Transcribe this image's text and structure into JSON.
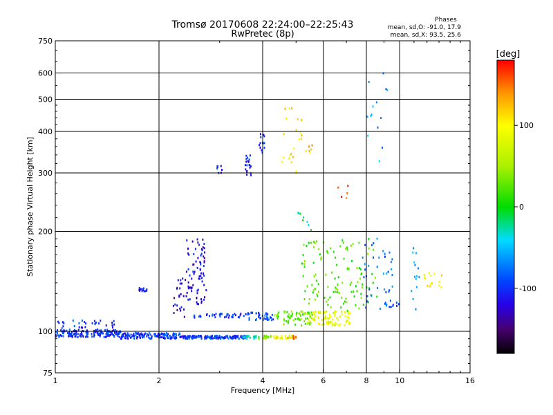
{
  "chart_data": {
    "type": "scatter",
    "title": "Tromsø 20170608 22:24:00–22:25:43",
    "subtitle": "RwPretec (8p)",
    "stats": {
      "heading": "Phases",
      "line_o": "mean, sd,O:  -91.0,  17.9",
      "line_x": "mean, sd,X:   93.5,  25.6"
    },
    "xlabel": "Frequency [MHz]",
    "ylabel": "Stationary phase Virtual Height [km]",
    "x_scale": "log2",
    "y_scale": "log",
    "xlim": [
      1,
      16
    ],
    "ylim": [
      75,
      750
    ],
    "grid": true,
    "x_ticks": [
      {
        "value": 1,
        "label": "1"
      },
      {
        "value": 2,
        "label": "2"
      },
      {
        "value": 4,
        "label": "4"
      },
      {
        "value": 6,
        "label": "6"
      },
      {
        "value": 8,
        "label": "8"
      },
      {
        "value": 10,
        "label": "10"
      },
      {
        "value": 16,
        "label": "16"
      }
    ],
    "x_grid": [
      2,
      4,
      6,
      8,
      10
    ],
    "y_ticks": [
      {
        "value": 75,
        "label": "75"
      },
      {
        "value": 100,
        "label": "100"
      },
      {
        "value": 200,
        "label": "200"
      },
      {
        "value": 300,
        "label": "300"
      },
      {
        "value": 400,
        "label": "400"
      },
      {
        "value": 500,
        "label": "500"
      },
      {
        "value": 600,
        "label": "600"
      },
      {
        "value": 750,
        "label": "750"
      }
    ],
    "y_grid": [
      100,
      200,
      300,
      400,
      500,
      600
    ],
    "colorbar": {
      "label": "[deg]",
      "ticks": [
        {
          "value": 100,
          "label": "100"
        },
        {
          "value": 0,
          "label": "0"
        },
        {
          "value": -100,
          "label": "-100"
        }
      ],
      "range": [
        -180,
        180
      ],
      "colormap": "rainbow: black (-180) → purple → blue (-100) → cyan → green (0) → yellow (100) → orange → red (180)"
    },
    "series": [
      {
        "clusters": [
          {
            "f": [
              1.0,
              1.55
            ],
            "h": [
              96,
              101
            ],
            "phase": -100,
            "n": 160
          },
          {
            "f": [
              1.55,
              2.3
            ],
            "h": [
              95,
              99
            ],
            "phase": -95,
            "n": 140
          },
          {
            "f": [
              2.3,
              3.6
            ],
            "h": [
              95,
              97
            ],
            "phase": -95,
            "n": 160
          },
          {
            "f": [
              3.5,
              3.9
            ],
            "h": [
              95,
              97
            ],
            "phase": -30,
            "n": 18
          },
          {
            "f": [
              3.9,
              4.3
            ],
            "h": [
              95,
              97
            ],
            "phase": 40,
            "n": 18
          },
          {
            "f": [
              4.3,
              4.95
            ],
            "h": [
              95,
              97
            ],
            "phase": 95,
            "n": 30
          },
          {
            "f": [
              4.7,
              5.0
            ],
            "h": [
              95,
              97
            ],
            "phase": 150,
            "n": 8
          },
          {
            "f": [
              1.0,
              1.5
            ],
            "h": [
              100,
              108
            ],
            "phase": -95,
            "n": 40
          },
          {
            "f": [
              1.75,
              1.85
            ],
            "h": [
              132,
              135
            ],
            "phase": -110,
            "n": 14
          },
          {
            "f": [
              2.2,
              2.4
            ],
            "h": [
              110,
              145
            ],
            "phase": -120,
            "n": 25
          },
          {
            "f": [
              2.4,
              2.75
            ],
            "h": [
              120,
              190
            ],
            "phase": -115,
            "n": 80
          },
          {
            "f": [
              2.5,
              3.2
            ],
            "h": [
              110,
              113
            ],
            "phase": -100,
            "n": 20
          },
          {
            "f": [
              3.1,
              3.6
            ],
            "h": [
              110,
              113
            ],
            "phase": -100,
            "n": 20
          },
          {
            "f": [
              3.6,
              4.3
            ],
            "h": [
              108,
              114
            ],
            "phase": -90,
            "n": 40
          },
          {
            "f": [
              2.95,
              3.05
            ],
            "h": [
              295,
              315
            ],
            "phase": -110,
            "n": 8
          },
          {
            "f": [
              3.55,
              3.7
            ],
            "h": [
              290,
              340
            ],
            "phase": -110,
            "n": 20
          },
          {
            "f": [
              3.9,
              4.05
            ],
            "h": [
              345,
              395
            ],
            "phase": -110,
            "n": 14
          },
          {
            "f": [
              4.3,
              5.6
            ],
            "h": [
              104,
              115
            ],
            "phase": 30,
            "n": 70
          },
          {
            "f": [
              5.4,
              7.2
            ],
            "h": [
              104,
              115
            ],
            "phase": 90,
            "n": 90
          },
          {
            "f": [
              5.2,
              8.6
            ],
            "h": [
              115,
              190
            ],
            "phase": 20,
            "n": 120
          },
          {
            "f": [
              7.8,
              9.6
            ],
            "h": [
              115,
              200
            ],
            "phase": -80,
            "n": 40
          },
          {
            "f": [
              9.0,
              10.0
            ],
            "h": [
              118,
              122
            ],
            "phase": -90,
            "n": 10
          },
          {
            "f": [
              4.5,
              5.2
            ],
            "h": [
              300,
              470
            ],
            "phase": 110,
            "n": 22
          },
          {
            "f": [
              5.2,
              5.6
            ],
            "h": [
              340,
              380
            ],
            "phase": 120,
            "n": 6
          },
          {
            "f": [
              5.0,
              5.6
            ],
            "h": [
              200,
              230
            ],
            "phase": -20,
            "n": 8
          },
          {
            "f": [
              6.6,
              7.2
            ],
            "h": [
              250,
              290
            ],
            "phase": 160,
            "n": 5
          },
          {
            "f": [
              8.0,
              9.2
            ],
            "h": [
              320,
              600
            ],
            "phase": -60,
            "n": 14
          },
          {
            "f": [
              10.8,
              11.4
            ],
            "h": [
              115,
              180
            ],
            "phase": -60,
            "n": 14
          },
          {
            "f": [
              11.4,
              13.3
            ],
            "h": [
              135,
              150
            ],
            "phase": 100,
            "n": 14
          }
        ]
      }
    ]
  }
}
